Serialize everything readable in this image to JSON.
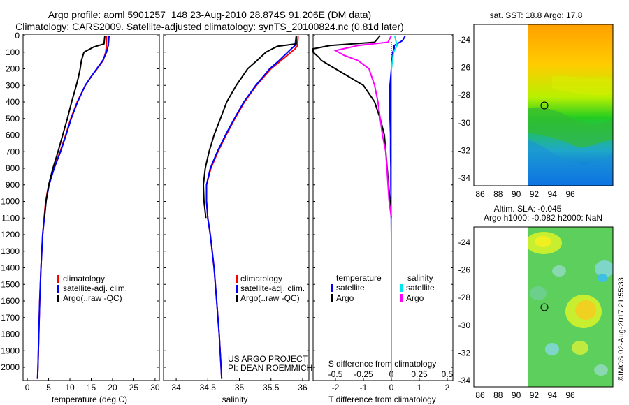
{
  "header": {
    "line1": "Argo profile: aoml 5901257_148 23-Aug-2010 28.874S 91.206E (DM data)",
    "line2": "Climatology: CARS2009. Satellite-adjusted climatology: synTS_20100824.nc (0.81d later)"
  },
  "colors": {
    "climatology": "#ff0000",
    "satellite": "#0000ff",
    "argo": "#000000",
    "sal_satellite": "#00e5ee",
    "sal_argo": "#ff00ff"
  },
  "chart_data": [
    {
      "id": "temperature",
      "type": "line",
      "xlabel": "temperature (deg C)",
      "xlim": [
        -1,
        31
      ],
      "xticks": [
        0,
        5,
        10,
        15,
        20,
        25,
        30
      ],
      "ylim": [
        2080,
        0
      ],
      "yticks": [
        0,
        100,
        200,
        300,
        400,
        500,
        600,
        700,
        800,
        900,
        1000,
        1100,
        1200,
        1300,
        1400,
        1500,
        1600,
        1700,
        1800,
        1900,
        2000
      ],
      "legend": [
        "climatology",
        "satellite-adj. clim.",
        "Argo(..raw -QC)"
      ],
      "series": [
        {
          "name": "climatology",
          "depth": [
            0,
            60,
            100,
            150,
            200,
            250,
            300,
            400,
            500,
            600,
            700,
            800,
            900,
            1000,
            1200,
            1400,
            1600,
            1800,
            2000,
            2070
          ],
          "values": [
            18.6,
            18.6,
            18.4,
            17.8,
            16.4,
            14.9,
            13.6,
            11.7,
            10.2,
            9.0,
            7.7,
            6.2,
            5.0,
            4.3,
            3.6,
            3.2,
            2.9,
            2.7,
            2.5,
            2.4
          ]
        },
        {
          "name": "satellite-adj. clim.",
          "depth": [
            0,
            60,
            100,
            150,
            200,
            250,
            300,
            400,
            500,
            600,
            700,
            800,
            900,
            1000,
            1200,
            1400,
            1600,
            1800,
            2000,
            2070
          ],
          "values": [
            19.2,
            19.0,
            18.6,
            17.7,
            16.3,
            14.9,
            13.6,
            11.8,
            10.3,
            9.1,
            7.8,
            6.3,
            5.1,
            4.4,
            3.6,
            3.2,
            2.9,
            2.7,
            2.5,
            2.4
          ]
        },
        {
          "name": "Argo",
          "depth": [
            0,
            50,
            70,
            100,
            150,
            200,
            250,
            300,
            400,
            500,
            600,
            700,
            800,
            900,
            1000,
            1100
          ],
          "values": [
            18.2,
            18.0,
            15.5,
            13.3,
            12.7,
            12.4,
            12.0,
            11.5,
            10.4,
            9.4,
            8.3,
            7.2,
            6.0,
            5.0,
            4.4,
            4.0
          ]
        }
      ]
    },
    {
      "id": "salinity",
      "type": "line",
      "xlabel": "salinity",
      "xlim": [
        33.8,
        36.1
      ],
      "xticks": [
        34,
        34.5,
        35,
        35.5,
        36
      ],
      "legend": [
        "climatology",
        "satellite-adj. clim.",
        "Argo(..raw -QC)"
      ],
      "annotation": [
        "US ARGO PROJECT",
        "PI: DEAN ROEMMICH"
      ],
      "series": [
        {
          "name": "climatology",
          "depth": [
            0,
            60,
            80,
            150,
            200,
            300,
            400,
            500,
            600,
            700,
            800,
            900,
            1000,
            1100,
            1200,
            1400,
            1600,
            1800,
            2000,
            2070
          ],
          "values": [
            35.93,
            35.92,
            35.88,
            35.66,
            35.5,
            35.27,
            35.08,
            34.93,
            34.79,
            34.66,
            34.55,
            34.48,
            34.48,
            34.5,
            34.54,
            34.6,
            34.64,
            34.68,
            34.71,
            34.72
          ]
        },
        {
          "name": "satellite-adj. clim.",
          "depth": [
            0,
            60,
            80,
            150,
            200,
            300,
            400,
            500,
            600,
            700,
            800,
            900,
            1000,
            1100,
            1200,
            1400,
            1600,
            1800,
            2000,
            2070
          ],
          "values": [
            35.9,
            35.88,
            35.82,
            35.63,
            35.48,
            35.26,
            35.07,
            34.92,
            34.78,
            34.65,
            34.54,
            34.48,
            34.48,
            34.5,
            34.54,
            34.6,
            34.64,
            34.68,
            34.71,
            34.72
          ]
        },
        {
          "name": "Argo",
          "depth": [
            0,
            50,
            65,
            100,
            150,
            200,
            300,
            400,
            500,
            600,
            700,
            800,
            900,
            1000,
            1100
          ],
          "values": [
            35.9,
            35.9,
            35.6,
            35.42,
            35.28,
            35.13,
            34.95,
            34.8,
            34.7,
            34.6,
            34.52,
            34.46,
            34.43,
            34.44,
            34.47
          ]
        }
      ]
    },
    {
      "id": "difference",
      "type": "line",
      "xlabel": "T difference from climatology",
      "xlabel_top": "S difference from climatology",
      "xlim": [
        -2.8,
        2.2
      ],
      "t_ticks": [
        -2,
        -1,
        0,
        1,
        2
      ],
      "s_ticks": [
        "-0.5",
        "-0.25",
        "0",
        "0.25",
        "0.5"
      ],
      "legend_temperature": "temperature",
      "legend_salinity": "salinity",
      "legend_satellite": "satellite",
      "legend_argo": "Argo",
      "series": [
        {
          "name": "T satellite",
          "depth": [
            0,
            30,
            60,
            80,
            100,
            150,
            200,
            300,
            400,
            500,
            600,
            700,
            800,
            900,
            1000,
            1200,
            1400,
            1600,
            1800,
            2000,
            2070
          ],
          "values": [
            0.5,
            0.4,
            0.1,
            0.1,
            0.05,
            0.02,
            0,
            -0.05,
            -0.05,
            -0.05,
            -0.03,
            -0.03,
            -0.02,
            -0.02,
            -0.01,
            0,
            0,
            0,
            0,
            0,
            0
          ]
        },
        {
          "name": "T Argo",
          "depth": [
            0,
            40,
            60,
            80,
            100,
            130,
            150,
            200,
            250,
            300,
            400,
            500,
            600,
            700,
            800,
            900,
            1000,
            1100
          ],
          "values": [
            -0.4,
            -0.6,
            -2.2,
            -2.8,
            -2.8,
            -2.6,
            -2.5,
            -2.0,
            -1.5,
            -1.0,
            -0.6,
            -0.4,
            -0.25,
            -0.2,
            -0.15,
            -0.1,
            -0.05,
            0
          ]
        },
        {
          "name": "S satellite",
          "depth": [
            0,
            30,
            60,
            100,
            150,
            200,
            300,
            400,
            600,
            800,
            1000,
            1500,
            2000,
            2070
          ],
          "values": [
            0.03,
            0.04,
            0.05,
            0.02,
            0.01,
            0,
            0,
            0,
            0,
            0,
            0,
            0,
            0,
            0
          ]
        },
        {
          "name": "S Argo",
          "depth": [
            0,
            40,
            60,
            90,
            120,
            150,
            200,
            300,
            400,
            500,
            600,
            700,
            800,
            900,
            1000,
            1100
          ],
          "values": [
            0,
            -0.03,
            -0.3,
            -0.5,
            -0.42,
            -0.3,
            -0.2,
            -0.15,
            -0.12,
            -0.1,
            -0.08,
            -0.05,
            -0.04,
            -0.03,
            -0.02,
            0
          ]
        }
      ]
    }
  ],
  "maps": {
    "sst": {
      "title": "sat. SST: 18.8 Argo: 17.8",
      "xticks": [
        "86",
        "88",
        "90",
        "92",
        "94",
        "96"
      ],
      "yticks": [
        "-24",
        "-26",
        "-28",
        "-30",
        "-32",
        "-34"
      ]
    },
    "sla": {
      "title1": "Altim. SLA: -0.045",
      "title2": "Argo h1000: -0.082 h2000: NaN",
      "xticks": [
        "86",
        "88",
        "90",
        "92",
        "94",
        "96"
      ],
      "yticks": [
        "-24",
        "-26",
        "-28",
        "-30",
        "-32",
        "-34"
      ]
    }
  },
  "footer": {
    "stamp": "©IMOS 02-Aug-2017 21:55:33"
  }
}
